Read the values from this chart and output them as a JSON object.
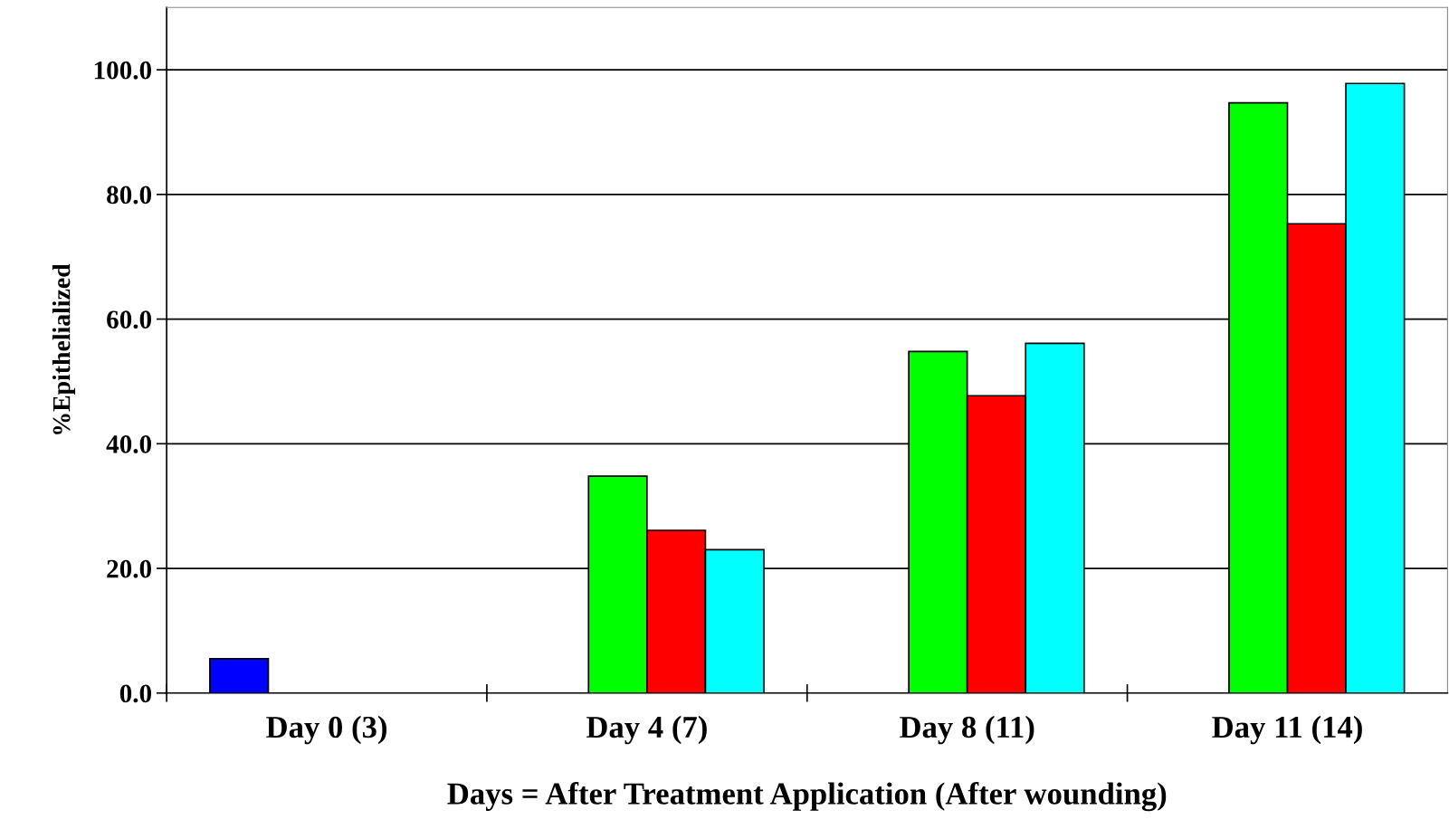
{
  "chart_data": {
    "type": "bar",
    "xlabel": "Days = After Treatment Application (After wounding)",
    "ylabel": "%Epithelialized",
    "categories": [
      "Day 0 (3)",
      "Day 4 (7)",
      "Day 8 (11)",
      "Day 11 (14)"
    ],
    "series": [
      {
        "color": "#0000ff",
        "values": [
          5.5,
          null,
          null,
          null
        ]
      },
      {
        "color": "#00ff00",
        "values": [
          null,
          34.8,
          54.8,
          94.7
        ]
      },
      {
        "color": "#ff0000",
        "values": [
          null,
          26.1,
          47.7,
          75.3
        ]
      },
      {
        "color": "#00ffff",
        "values": [
          null,
          23.0,
          56.1,
          97.8
        ]
      }
    ],
    "ylim": [
      0,
      110
    ],
    "yticks": [
      {
        "value": 0,
        "label": "0.0"
      },
      {
        "value": 20,
        "label": "20.0"
      },
      {
        "value": 40,
        "label": "40.0"
      },
      {
        "value": 60,
        "label": "60.0"
      },
      {
        "value": 80,
        "label": "80.0"
      },
      {
        "value": 100,
        "label": "100.0"
      }
    ],
    "grid": "y",
    "legend": false
  }
}
